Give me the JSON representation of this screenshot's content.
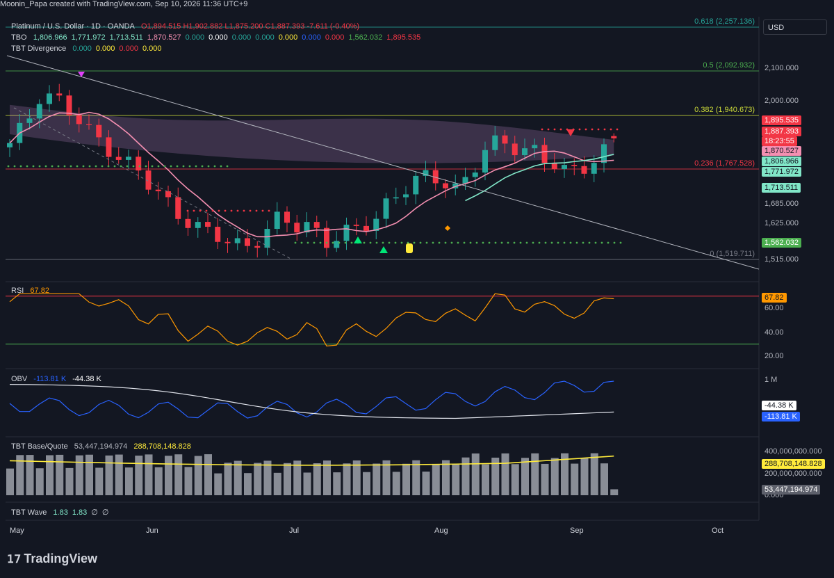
{
  "header": {
    "attribution": "Moonin_Papa created with TradingView.com, Sep 10, 2026 11:36 UTC+9",
    "symbol": "Platinum / U.S. Dollar · 1D · OANDA",
    "ohlc": "O1,894.515  H1,902.882  L1,875.200  C1,887.393  -7.611 (-0.40%)"
  },
  "legends": {
    "tbo": {
      "name": "TBO",
      "values": [
        "1,806.966",
        "1,771.972",
        "1,713.511",
        "1,870.527",
        "0.000",
        "0.000",
        "0.000",
        "0.000",
        "0.000",
        "0.000",
        "0.000",
        "1,562.032",
        "1,895.535"
      ]
    },
    "tbt_divergence": {
      "name": "TBT Divergence",
      "values": [
        "0.000",
        "0.000",
        "0.000",
        "0.000"
      ]
    },
    "rsi": {
      "name": "RSI",
      "value": "67.82"
    },
    "obv": {
      "name": "OBV",
      "values": [
        "-113.81 K",
        "-44.38 K"
      ]
    },
    "base_quote": {
      "name": "TBT Base/Quote",
      "values": [
        "53,447,194.974",
        "288,708,148.828"
      ]
    },
    "wave": {
      "name": "TBT Wave",
      "values": [
        "1.83",
        "1.83",
        "∅",
        "∅"
      ]
    }
  },
  "currency_button": "USD",
  "price_axis": {
    "ticks": [
      "2,100.000",
      "2,000.000",
      "1,685.000",
      "1,625.000",
      "1,515.000"
    ]
  },
  "price_labels": [
    {
      "text": "1,895.535",
      "bg": "#f23645",
      "fg": "#ffffff"
    },
    {
      "text": "1,887.393",
      "bg": "#f23645",
      "fg": "#ffffff"
    },
    {
      "text": "18:23:55",
      "bg": "#f23645",
      "fg": "#ffffff"
    },
    {
      "text": "1,870.527",
      "bg": "#f48fb1",
      "fg": "#131722"
    },
    {
      "text": "1,806.966",
      "bg": "#81e6c8",
      "fg": "#131722"
    },
    {
      "text": "1,771.972",
      "bg": "#81e6c8",
      "fg": "#131722"
    },
    {
      "text": "1,713.511",
      "bg": "#81e6c8",
      "fg": "#131722"
    },
    {
      "text": "1,562.032",
      "bg": "#4caf50",
      "fg": "#ffffff"
    }
  ],
  "fib_levels": [
    {
      "label": "0.618 (2,257.136)",
      "color": "#26a69a"
    },
    {
      "label": "0.5 (2,092.932)",
      "color": "#4caf50"
    },
    {
      "label": "0.382 (1,940.673)",
      "color": "#cddc39"
    },
    {
      "label": "0.236 (1,767.528)",
      "color": "#f23645"
    },
    {
      "label": "0 (1,519.711)",
      "color": "#787b86"
    }
  ],
  "rsi_axis": {
    "ticks": [
      "60.00",
      "40.00",
      "20.00"
    ],
    "label": "67.82"
  },
  "obv_axis": {
    "ticks": [
      "1 M"
    ],
    "labels": [
      "-44.38 K",
      "-113.81 K"
    ]
  },
  "vol_axis": {
    "ticks": [
      "400,000,000.000",
      "200,000,000.000",
      "0.000"
    ],
    "labels": [
      "288,708,148.828",
      "53,447,194.974"
    ]
  },
  "months": [
    "May",
    "Jun",
    "Jul",
    "Aug",
    "Sep",
    "Oct"
  ],
  "brand": "TradingView",
  "colors": {
    "up": "#26a69a",
    "down": "#f23645",
    "bg": "#131722",
    "ema": "#f48fb1",
    "fast": "#81e6c8",
    "rsi": "#ff9800",
    "obv": "#2962ff",
    "vol_ma": "#ffeb3b"
  },
  "chart_data": {
    "type": "candlestick",
    "title": "Platinum / U.S. Dollar · 1D · OANDA",
    "x": [
      "May",
      "Jun",
      "Jul",
      "Aug",
      "Sep",
      "Oct"
    ],
    "close_trend": [
      1860,
      1930,
      2040,
      2010,
      1950,
      1900,
      1875,
      1830,
      1790,
      1720,
      1690,
      1650,
      1610,
      1580,
      1560,
      1570,
      1600,
      1640,
      1610,
      1625,
      1580,
      1590,
      1605,
      1640,
      1720,
      1740,
      1760,
      1760,
      1740,
      1790,
      1850,
      1870,
      1860,
      1860,
      1810,
      1770,
      1800,
      1840,
      1887
    ],
    "ylim": [
      1490,
      2270
    ],
    "rsi_last": 67.82,
    "obv_last": [
      -113.81,
      -44.38
    ],
    "volume_last": 53447194.974,
    "volume_ma": 288708148.828
  }
}
